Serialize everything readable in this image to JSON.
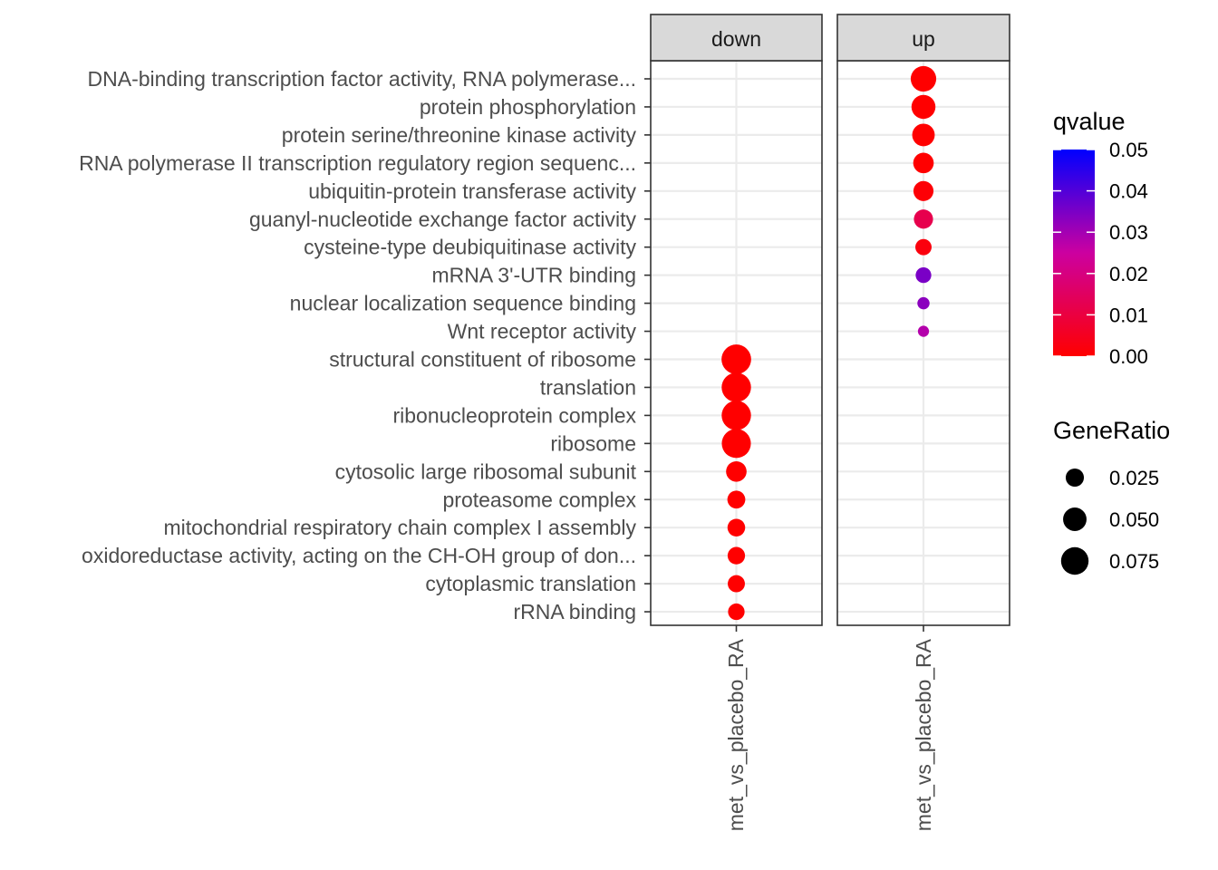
{
  "chart_data": {
    "type": "scatter",
    "facets": [
      "down",
      "up"
    ],
    "x_category": "met_vs_placebo_RA",
    "terms": [
      "DNA-binding transcription factor activity, RNA polymerase...",
      "protein phosphorylation",
      "protein serine/threonine kinase activity",
      "RNA polymerase II transcription regulatory region sequenc...",
      "ubiquitin-protein transferase activity",
      "guanyl-nucleotide exchange factor activity",
      "cysteine-type deubiquitinase activity",
      "mRNA 3'-UTR binding",
      "nuclear localization sequence binding",
      "Wnt receptor activity",
      "structural constituent of ribosome",
      "translation",
      "ribonucleoprotein complex",
      "ribosome",
      "cytosolic large ribosomal subunit",
      "proteasome complex",
      "mitochondrial respiratory chain complex I assembly",
      "oxidoreductase activity, acting on the CH-OH group of don...",
      "cytoplasmic translation",
      "rRNA binding"
    ],
    "points": [
      {
        "facet": "up",
        "term": "DNA-binding transcription factor activity, RNA polymerase...",
        "gene_ratio": 0.062,
        "qvalue": 0.0
      },
      {
        "facet": "up",
        "term": "protein phosphorylation",
        "gene_ratio": 0.053,
        "qvalue": 0.0
      },
      {
        "facet": "up",
        "term": "protein serine/threonine kinase activity",
        "gene_ratio": 0.045,
        "qvalue": 0.0
      },
      {
        "facet": "up",
        "term": "RNA polymerase II transcription regulatory region sequenc...",
        "gene_ratio": 0.035,
        "qvalue": 0.0
      },
      {
        "facet": "up",
        "term": "ubiquitin-protein transferase activity",
        "gene_ratio": 0.033,
        "qvalue": 0.001
      },
      {
        "facet": "up",
        "term": "guanyl-nucleotide exchange factor activity",
        "gene_ratio": 0.029,
        "qvalue": 0.012
      },
      {
        "facet": "up",
        "term": "cysteine-type deubiquitinase activity",
        "gene_ratio": 0.018,
        "qvalue": 0.002
      },
      {
        "facet": "up",
        "term": "mRNA 3'-UTR binding",
        "gene_ratio": 0.016,
        "qvalue": 0.035
      },
      {
        "facet": "up",
        "term": "nuclear localization sequence binding",
        "gene_ratio": 0.007,
        "qvalue": 0.033
      },
      {
        "facet": "up",
        "term": "Wnt receptor activity",
        "gene_ratio": 0.005,
        "qvalue": 0.028
      },
      {
        "facet": "down",
        "term": "structural constituent of ribosome",
        "gene_ratio": 0.09,
        "qvalue": 0.0
      },
      {
        "facet": "down",
        "term": "translation",
        "gene_ratio": 0.088,
        "qvalue": 0.0
      },
      {
        "facet": "down",
        "term": "ribonucleoprotein complex",
        "gene_ratio": 0.088,
        "qvalue": 0.0
      },
      {
        "facet": "down",
        "term": "ribosome",
        "gene_ratio": 0.086,
        "qvalue": 0.0
      },
      {
        "facet": "down",
        "term": "cytosolic large ribosomal subunit",
        "gene_ratio": 0.035,
        "qvalue": 0.0
      },
      {
        "facet": "down",
        "term": "proteasome complex",
        "gene_ratio": 0.024,
        "qvalue": 0.0
      },
      {
        "facet": "down",
        "term": "mitochondrial respiratory chain complex I assembly",
        "gene_ratio": 0.023,
        "qvalue": 0.0
      },
      {
        "facet": "down",
        "term": "oxidoreductase activity, acting on the CH-OH group of don...",
        "gene_ratio": 0.022,
        "qvalue": 0.0
      },
      {
        "facet": "down",
        "term": "cytoplasmic translation",
        "gene_ratio": 0.021,
        "qvalue": 0.0
      },
      {
        "facet": "down",
        "term": "rRNA binding",
        "gene_ratio": 0.019,
        "qvalue": 0.0
      }
    ],
    "color_legend": {
      "title": "qvalue",
      "ticks": [
        "0.05",
        "0.04",
        "0.03",
        "0.02",
        "0.01",
        "0.00"
      ],
      "range": [
        0.0,
        0.05
      ],
      "low_color": "#ff0000",
      "high_color": "#0000ff"
    },
    "size_legend": {
      "title": "GeneRatio",
      "ticks": [
        "0.025",
        "0.050",
        "0.075"
      ],
      "values": [
        0.025,
        0.05,
        0.075
      ]
    },
    "legend_position": "right",
    "grid": true,
    "theme": "bw"
  }
}
